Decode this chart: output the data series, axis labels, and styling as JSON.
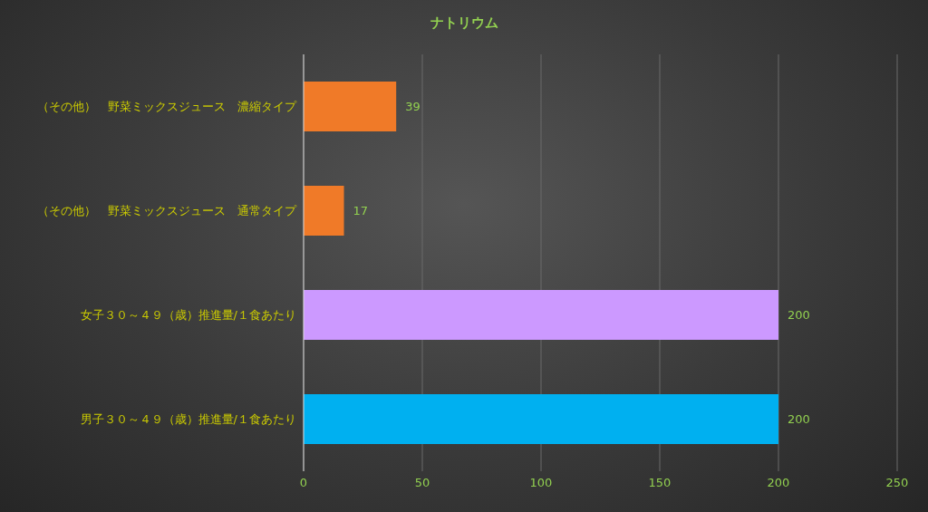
{
  "chart_data": {
    "type": "bar",
    "orientation": "horizontal",
    "title": "ナトリウム",
    "categories": [
      "（その他）　野菜ミックスジュース　濃縮タイプ",
      "（その他）　野菜ミックスジュース　通常タイプ",
      "女子３０～４９（歳）推進量/１食あたり",
      "男子３０～４９（歳）推進量/１食あたり"
    ],
    "values": [
      39,
      17,
      200,
      200
    ],
    "colors": [
      "#f07a28",
      "#f07a28",
      "#cc99ff",
      "#00b0f0"
    ],
    "xlim": [
      0,
      250
    ],
    "xticks": [
      0,
      50,
      100,
      150,
      200,
      250
    ],
    "grid": "x",
    "data_labels": true,
    "legend": false
  }
}
